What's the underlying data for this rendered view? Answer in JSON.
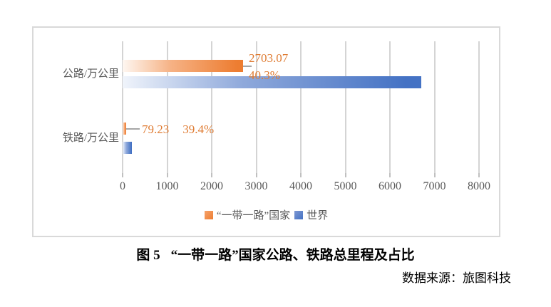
{
  "chart_data": {
    "type": "bar",
    "orientation": "horizontal",
    "categories": [
      "公路/万公里",
      "铁路/万公里"
    ],
    "series": [
      {
        "name": "“一带一路”国家",
        "color": "#ED7D31",
        "values": [
          2703.07,
          79.23
        ],
        "value_labels": [
          "2703.07",
          "79.23"
        ],
        "pct_labels": [
          "40.3%",
          "39.4%"
        ]
      },
      {
        "name": "世界",
        "color": "#4472C4",
        "values": [
          6707,
          201
        ],
        "note": "unlabeled bars, values estimated from gridlines"
      }
    ],
    "xlim": [
      0,
      8000
    ],
    "x_ticks": [
      0,
      1000,
      2000,
      3000,
      4000,
      5000,
      6000,
      7000,
      8000
    ],
    "grid": "vertical-gridlines-on",
    "legend_position": "bottom"
  },
  "caption": {
    "figure_label": "图 5",
    "title": "“一带一路”国家公路、铁路总里程及占比"
  },
  "source": "数据来源：旅图科技",
  "colors": {
    "brl_orange": "#ED7D31",
    "world_blue": "#4472C4",
    "axis_text": "#595959",
    "gridline": "#D4D4D4",
    "border": "#D9D9D9",
    "whisker": "#A6A6A6",
    "data_label": "#DF7B32"
  }
}
